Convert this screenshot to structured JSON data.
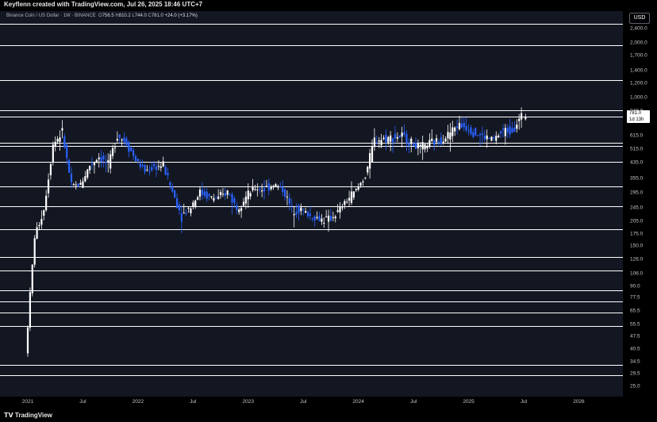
{
  "header": {
    "credit": "Keyflenn created with TradingView.com, Jul 26, 2025 18:46 UTC+7"
  },
  "legend": {
    "symbol": "Binance Coin / US Dollar · 1W · BINANCE",
    "o_label": "O",
    "o_value": "756.5",
    "h_label": "H",
    "h_value": "810.2",
    "l_label": "L",
    "l_value": "744.0",
    "c_label": "C",
    "c_value": "781.0",
    "change": "+24.0 (+3.17%)"
  },
  "currency": "USD",
  "price_label": {
    "price": "781.0",
    "countdown": "1d 13h"
  },
  "colors": {
    "up": "#ffffff",
    "down": "#2962ff",
    "background": "#131722",
    "hlines": "#ffffff"
  },
  "footer": {
    "brand": "TradingView"
  },
  "chart_data": {
    "type": "candlestick",
    "title": "Binance Coin / US Dollar · 1W · BINANCE",
    "scale": "log",
    "ylim": [
      22,
      3000
    ],
    "y_ticks": [
      "25.0",
      "29.5",
      "34.5",
      "40.5",
      "47.5",
      "55.5",
      "65.5",
      "77.5",
      "90.0",
      "106.0",
      "126.0",
      "150.0",
      "175.0",
      "205.0",
      "245.0",
      "295.0",
      "355.0",
      "435.0",
      "515.0",
      "615.0",
      "840.0",
      "1,000.0",
      "1,200.0",
      "1,400.0",
      "1,700.0",
      "2,000.0",
      "2,400.0"
    ],
    "x_ticks": [
      "2021",
      "Jul",
      "2022",
      "Jul",
      "2023",
      "Jul",
      "2024",
      "Jul",
      "2025",
      "Jul",
      "2026"
    ],
    "horizontal_levels": [
      2550,
      1950,
      1250,
      850,
      780,
      560,
      540,
      440,
      320,
      250,
      185,
      130,
      110,
      85,
      74,
      64,
      54,
      33,
      29
    ],
    "price_path": [
      [
        "2021-01",
        38
      ],
      [
        "2021-02",
        170
      ],
      [
        "2021-03",
        240
      ],
      [
        "2021-04",
        550
      ],
      [
        "2021-05",
        640
      ],
      [
        "2021-06",
        320
      ],
      [
        "2021-07",
        330
      ],
      [
        "2021-08",
        420
      ],
      [
        "2021-09",
        470
      ],
      [
        "2021-10",
        420
      ],
      [
        "2021-11",
        620
      ],
      [
        "2021-12",
        560
      ],
      [
        "2022-01",
        450
      ],
      [
        "2022-02",
        390
      ],
      [
        "2022-03",
        410
      ],
      [
        "2022-04",
        420
      ],
      [
        "2022-05",
        300
      ],
      [
        "2022-06",
        220
      ],
      [
        "2022-07",
        250
      ],
      [
        "2022-08",
        300
      ],
      [
        "2022-09",
        280
      ],
      [
        "2022-10",
        275
      ],
      [
        "2022-11",
        300
      ],
      [
        "2022-12",
        245
      ],
      [
        "2023-01",
        280
      ],
      [
        "2023-02",
        315
      ],
      [
        "2023-03",
        310
      ],
      [
        "2023-04",
        330
      ],
      [
        "2023-05",
        310
      ],
      [
        "2023-06",
        240
      ],
      [
        "2023-07",
        240
      ],
      [
        "2023-08",
        220
      ],
      [
        "2023-09",
        212
      ],
      [
        "2023-10",
        210
      ],
      [
        "2023-11",
        230
      ],
      [
        "2023-12",
        270
      ],
      [
        "2024-01",
        305
      ],
      [
        "2024-02",
        370
      ],
      [
        "2024-03",
        580
      ],
      [
        "2024-04",
        590
      ],
      [
        "2024-05",
        600
      ],
      [
        "2024-06",
        610
      ],
      [
        "2024-07",
        560
      ],
      [
        "2024-08",
        520
      ],
      [
        "2024-09",
        555
      ],
      [
        "2024-10",
        575
      ],
      [
        "2024-11",
        620
      ],
      [
        "2024-12",
        700
      ],
      [
        "2025-01",
        690
      ],
      [
        "2025-02",
        630
      ],
      [
        "2025-03",
        600
      ],
      [
        "2025-04",
        585
      ],
      [
        "2025-05",
        650
      ],
      [
        "2025-06",
        660
      ],
      [
        "2025-07",
        781
      ]
    ],
    "last_candle": {
      "open": 756.5,
      "high": 810.2,
      "low": 744.0,
      "close": 781.0
    }
  }
}
